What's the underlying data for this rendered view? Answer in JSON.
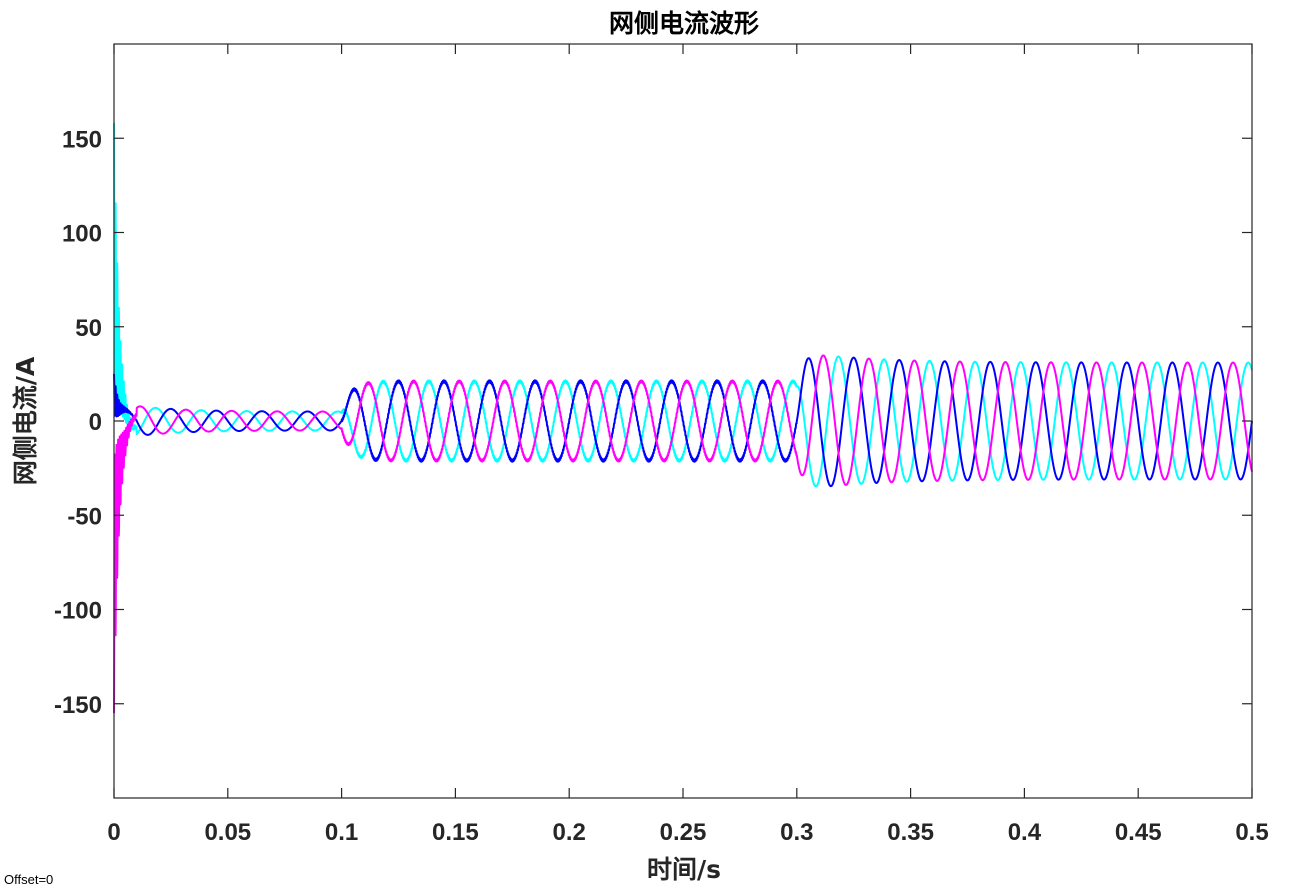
{
  "chart_data": {
    "type": "line",
    "title": "网侧电流波形",
    "xlabel": "时间/s",
    "ylabel": "网侧电流/A",
    "xlim": [
      0,
      0.5
    ],
    "ylim": [
      -200,
      200
    ],
    "xticks": [
      0,
      0.05,
      0.1,
      0.15,
      0.2,
      0.25,
      0.3,
      0.35,
      0.4,
      0.45,
      0.5
    ],
    "xtick_labels": [
      "0",
      "0.05",
      "0.1",
      "0.15",
      "0.2",
      "0.25",
      "0.3",
      "0.35",
      "0.4",
      "0.45",
      "0.5"
    ],
    "yticks": [
      -150,
      -100,
      -50,
      0,
      50,
      100,
      150
    ],
    "ytick_labels": [
      "-150",
      "-100",
      "-50",
      "0",
      "50",
      "100",
      "150"
    ],
    "grid": false,
    "box": true,
    "fundamental_frequency_hz": 50,
    "series": [
      {
        "color": "#0000ff",
        "phase_deg": 0,
        "segments": [
          {
            "t_start": 0,
            "t_end": 0.01,
            "initial_peak": 25
          },
          {
            "t_start": 0.01,
            "t_end": 0.1,
            "amplitude": 5
          },
          {
            "t_start": 0.1,
            "t_end": 0.3,
            "amplitude": 21
          },
          {
            "t_start": 0.3,
            "t_end": 0.5,
            "amplitude": 31,
            "overshoot_peak": 37
          }
        ]
      },
      {
        "color": "#ff00ff",
        "phase_deg": -120,
        "segments": [
          {
            "t_start": 0,
            "t_end": 0.01,
            "initial_peak": -155
          },
          {
            "t_start": 0.01,
            "t_end": 0.1,
            "amplitude": 5
          },
          {
            "t_start": 0.1,
            "t_end": 0.3,
            "amplitude": 21
          },
          {
            "t_start": 0.3,
            "t_end": 0.5,
            "amplitude": 31,
            "overshoot_peak": 37
          }
        ]
      },
      {
        "color": "#00ffff",
        "phase_deg": 120,
        "segments": [
          {
            "t_start": 0,
            "t_end": 0.01,
            "initial_peak": 158
          },
          {
            "t_start": 0.01,
            "t_end": 0.1,
            "amplitude": 5
          },
          {
            "t_start": 0.1,
            "t_end": 0.3,
            "amplitude": 21
          },
          {
            "t_start": 0.3,
            "t_end": 0.5,
            "amplitude": 31,
            "overshoot_peak": 37
          }
        ]
      }
    ]
  },
  "footer": {
    "offset_text": "Offset=0"
  }
}
